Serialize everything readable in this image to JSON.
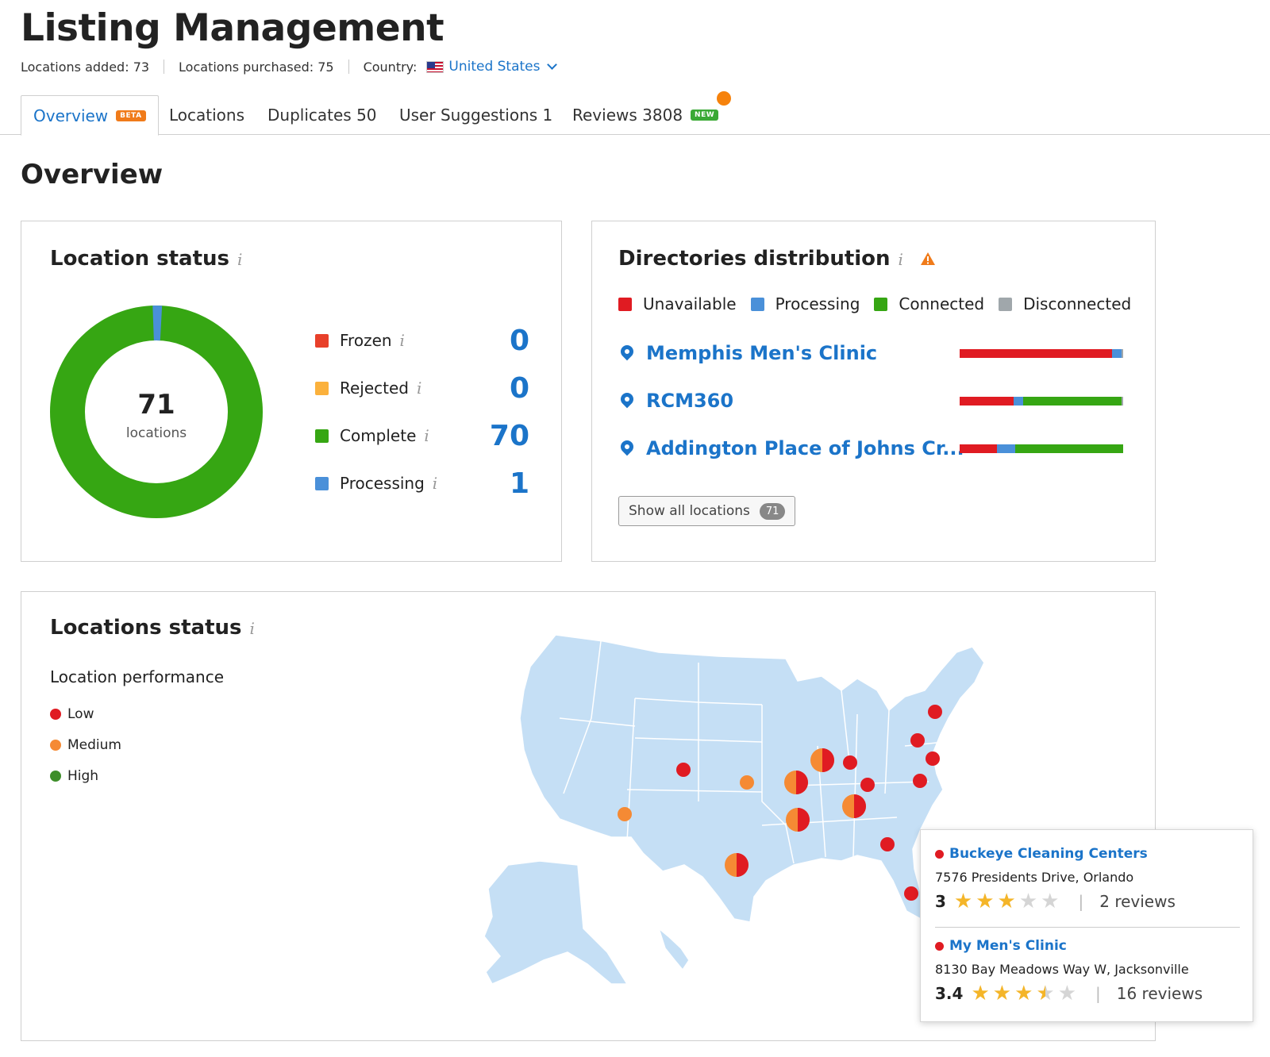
{
  "header": {
    "title": "Listing Management",
    "locations_added": "Locations added: 73",
    "locations_purchased": "Locations purchased: 75",
    "country_label": "Country:",
    "country_value": "United States"
  },
  "tabs": [
    {
      "label": "Overview",
      "badge": "BETA"
    },
    {
      "label": "Locations"
    },
    {
      "label": "Duplicates",
      "count": "50"
    },
    {
      "label": "User Suggestions",
      "count": "1"
    },
    {
      "label": "Reviews",
      "count": "3808",
      "badge": "NEW"
    }
  ],
  "section_title": "Overview",
  "location_status": {
    "title": "Location status",
    "total": "71",
    "total_label": "locations",
    "items": [
      {
        "label": "Frozen",
        "value": "0",
        "color": "#e8402a"
      },
      {
        "label": "Rejected",
        "value": "0",
        "color": "#fbb13c"
      },
      {
        "label": "Complete",
        "value": "70",
        "color": "#36a613"
      },
      {
        "label": "Processing",
        "value": "1",
        "color": "#4a90d9"
      }
    ]
  },
  "directories": {
    "title": "Directories distribution",
    "legend": [
      {
        "label": "Unavailable",
        "color": "#e01b22"
      },
      {
        "label": "Processing",
        "color": "#4a90d9"
      },
      {
        "label": "Connected",
        "color": "#36a613"
      },
      {
        "label": "Disconnected",
        "color": "#a0a7ab"
      }
    ],
    "locations": [
      {
        "name": "Memphis Men's Clinic",
        "unavailable": 0.93,
        "processing": 0.06,
        "connected": 0.0,
        "disconnected": 0.01
      },
      {
        "name": "RCM360",
        "unavailable": 0.33,
        "processing": 0.06,
        "connected": 0.6,
        "disconnected": 0.01
      },
      {
        "name": "Addington Place of Johns Cr...",
        "unavailable": 0.23,
        "processing": 0.11,
        "connected": 0.66,
        "disconnected": 0.0
      }
    ],
    "show_all_label": "Show all locations",
    "show_all_count": "71"
  },
  "map_card": {
    "title": "Locations status",
    "performance_label": "Location performance",
    "legend": [
      {
        "label": "Low",
        "color": "#e01b22"
      },
      {
        "label": "Medium",
        "color": "#f58a34"
      },
      {
        "label": "High",
        "color": "#3e8e2a"
      }
    ]
  },
  "tooltip": [
    {
      "name": "Buckeye Cleaning Centers",
      "address": "7576 Presidents Drive, Orlando",
      "rating": "3",
      "stars": 3,
      "reviews": "2 reviews"
    },
    {
      "name": "My Men's Clinic",
      "address": "8130 Bay Meadows Way W, Jacksonville",
      "rating": "3.4",
      "stars": 3.5,
      "reviews": "16 reviews"
    }
  ],
  "colors": {
    "accent": "#1b74c9",
    "map_fill": "#c5dff5",
    "map_stroke": "#ffffff"
  }
}
